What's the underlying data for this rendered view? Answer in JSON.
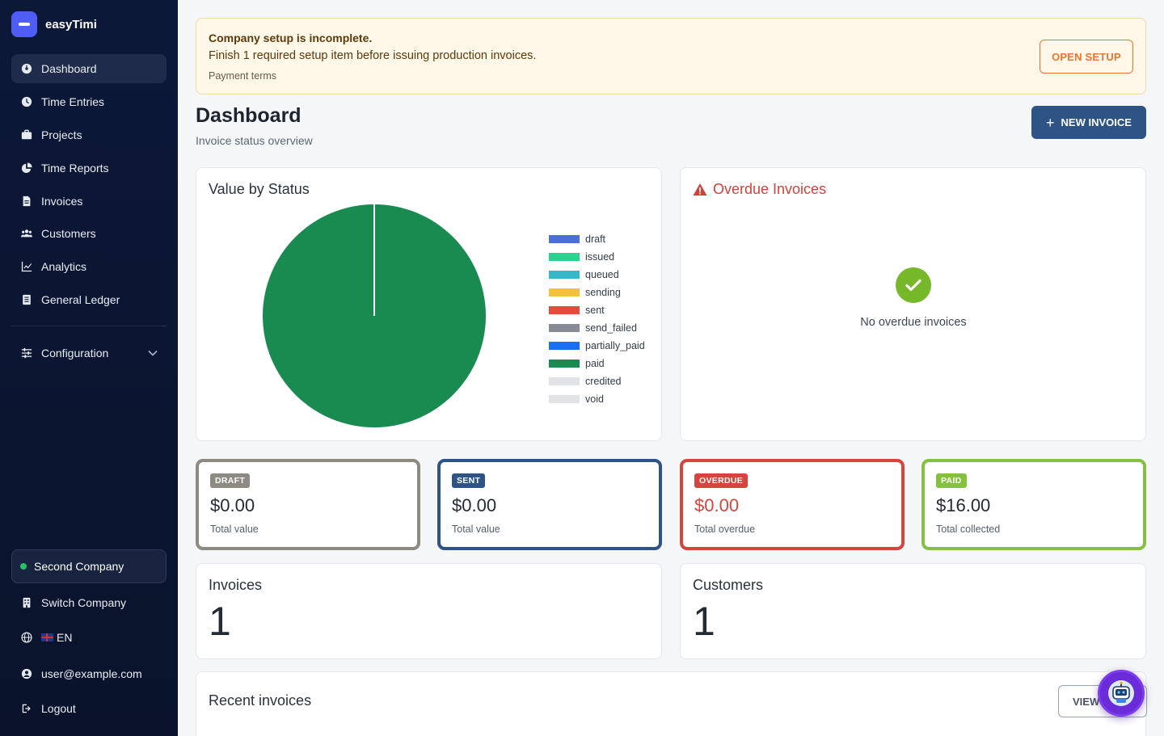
{
  "app": {
    "name": "easyTimi"
  },
  "sidebar": {
    "items": [
      {
        "label": "Dashboard",
        "icon": "dashboard-icon",
        "active": true
      },
      {
        "label": "Time Entries",
        "icon": "clock-icon"
      },
      {
        "label": "Projects",
        "icon": "briefcase-icon"
      },
      {
        "label": "Time Reports",
        "icon": "pie-report-icon"
      },
      {
        "label": "Invoices",
        "icon": "file-icon"
      },
      {
        "label": "Customers",
        "icon": "users-icon"
      },
      {
        "label": "Analytics",
        "icon": "line-chart-icon"
      },
      {
        "label": "General Ledger",
        "icon": "ledger-icon"
      }
    ],
    "configuration": "Configuration",
    "company": "Second Company",
    "switch_company": "Switch Company",
    "language": "EN",
    "user": "user@example.com",
    "logout": "Logout"
  },
  "banner": {
    "title": "Company setup is incomplete.",
    "message": "Finish 1 required setup item before issuing production invoices.",
    "item": "Payment terms",
    "button": "OPEN SETUP"
  },
  "header": {
    "title": "Dashboard",
    "subtitle": "Invoice status overview",
    "new_invoice": "NEW INVOICE"
  },
  "value_by_status": {
    "title": "Value by Status",
    "chart_data": {
      "type": "pie",
      "title": "Value by Status",
      "legend_position": "right",
      "categories": [
        "draft",
        "issued",
        "queued",
        "sending",
        "sent",
        "send_failed",
        "partially_paid",
        "paid",
        "credited",
        "void"
      ],
      "values": [
        0,
        0,
        0,
        0,
        0,
        0,
        0,
        16,
        0,
        0
      ],
      "colors": [
        "#4a6fd6",
        "#2ecf8f",
        "#38b7c9",
        "#f2c23a",
        "#e54b3c",
        "#878b96",
        "#1a6ef2",
        "#198a50",
        "#e2e3e6",
        "#e2e3e6"
      ]
    }
  },
  "overdue": {
    "title": "Overdue Invoices",
    "empty": "No overdue invoices"
  },
  "stats": [
    {
      "badge": "DRAFT",
      "value": "$0.00",
      "label": "Total value",
      "color": "#8c8a82",
      "value_color": "#232b35"
    },
    {
      "badge": "SENT",
      "value": "$0.00",
      "label": "Total value",
      "color": "#2e5485",
      "value_color": "#232b35"
    },
    {
      "badge": "OVERDUE",
      "value": "$0.00",
      "label": "Total overdue",
      "color": "#d6453d",
      "value_color": "#d6453d"
    },
    {
      "badge": "PAID",
      "value": "$16.00",
      "label": "Total collected",
      "color": "#86c041",
      "value_color": "#232b35"
    }
  ],
  "counts": {
    "invoices_label": "Invoices",
    "invoices_value": "1",
    "customers_label": "Customers",
    "customers_value": "1"
  },
  "recent": {
    "title": "Recent invoices",
    "view_button": "VIEW"
  }
}
